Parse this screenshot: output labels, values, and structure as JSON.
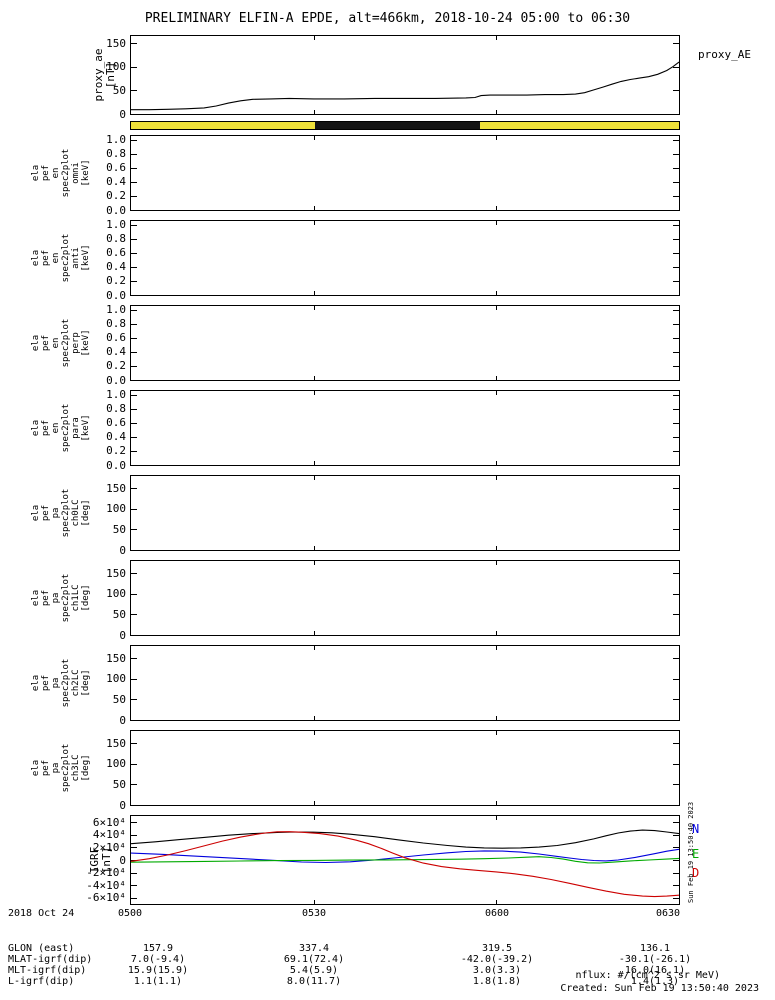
{
  "title": "PRELIMINARY ELFIN-A EPDE, alt=466km, 2018-10-24 05:00 to 06:30",
  "side_timestamp": "Sun Feb 19 13:50:40 2023",
  "footer": {
    "rows": [
      {
        "label": "2018 Oct 24",
        "values": [
          "0500",
          "0530",
          "0600",
          "0630"
        ]
      },
      {
        "label": "GLON (east)",
        "values": [
          "157.9",
          "337.4",
          "319.5",
          "136.1"
        ]
      },
      {
        "label": "MLAT-igrf(dip)",
        "values": [
          "7.0(-9.4)",
          "69.1(72.4)",
          "-42.0(-39.2)",
          "-30.1(-26.1)"
        ]
      },
      {
        "label": "MLT-igrf(dip)",
        "values": [
          "15.9(15.9)",
          "5.4(5.9)",
          "3.0(3.3)",
          "16.0(16.1)"
        ]
      },
      {
        "label": "L-igrf(dip)",
        "values": [
          "1.1(1.1)",
          "8.0(11.7)",
          "1.8(1.8)",
          "1.4(1.3)"
        ]
      }
    ],
    "nflux_units": "nflux: #/(cm^2 s sr MeV)",
    "created": "Created: Sun Feb 19 13:50:40 2023"
  },
  "panels": {
    "proxy": {
      "ylim": [
        0,
        165
      ],
      "yticks": [
        {
          "v": 0,
          "label": "0"
        },
        {
          "v": 50,
          "label": "50"
        },
        {
          "v": 100,
          "label": "100"
        },
        {
          "v": 150,
          "label": "150"
        }
      ],
      "ylabel_lines": [
        "proxy_ae",
        "[nT]"
      ]
    },
    "omni": {
      "ylim": [
        0,
        1.05
      ],
      "yticks": [
        {
          "v": 0,
          "label": "0.0"
        },
        {
          "v": 0.2,
          "label": "0.2"
        },
        {
          "v": 0.4,
          "label": "0.4"
        },
        {
          "v": 0.6,
          "label": "0.6"
        },
        {
          "v": 0.8,
          "label": "0.8"
        },
        {
          "v": 1,
          "label": "1.0"
        }
      ],
      "ylabel_lines": [
        "ela",
        "pef",
        "en",
        "spec2plot",
        "omni",
        "[keV]"
      ]
    },
    "anti": {
      "ylim": [
        0,
        1.05
      ],
      "yticks": [
        {
          "v": 0,
          "label": "0.0"
        },
        {
          "v": 0.2,
          "label": "0.2"
        },
        {
          "v": 0.4,
          "label": "0.4"
        },
        {
          "v": 0.6,
          "label": "0.6"
        },
        {
          "v": 0.8,
          "label": "0.8"
        },
        {
          "v": 1,
          "label": "1.0"
        }
      ],
      "ylabel_lines": [
        "ela",
        "pef",
        "en",
        "spec2plot",
        "anti",
        "[keV]"
      ]
    },
    "perp": {
      "ylim": [
        0,
        1.05
      ],
      "yticks": [
        {
          "v": 0,
          "label": "0.0"
        },
        {
          "v": 0.2,
          "label": "0.2"
        },
        {
          "v": 0.4,
          "label": "0.4"
        },
        {
          "v": 0.6,
          "label": "0.6"
        },
        {
          "v": 0.8,
          "label": "0.8"
        },
        {
          "v": 1,
          "label": "1.0"
        }
      ],
      "ylabel_lines": [
        "ela",
        "pef",
        "en",
        "spec2plot",
        "perp",
        "[keV]"
      ]
    },
    "para": {
      "ylim": [
        0,
        1.05
      ],
      "yticks": [
        {
          "v": 0,
          "label": "0.0"
        },
        {
          "v": 0.2,
          "label": "0.2"
        },
        {
          "v": 0.4,
          "label": "0.4"
        },
        {
          "v": 0.6,
          "label": "0.6"
        },
        {
          "v": 0.8,
          "label": "0.8"
        },
        {
          "v": 1,
          "label": "1.0"
        }
      ],
      "ylabel_lines": [
        "ela",
        "pef",
        "en",
        "spec2plot",
        "para",
        "[keV]"
      ]
    },
    "ch0": {
      "ylim": [
        0,
        180
      ],
      "yticks": [
        {
          "v": 0,
          "label": "0"
        },
        {
          "v": 50,
          "label": "50"
        },
        {
          "v": 100,
          "label": "100"
        },
        {
          "v": 150,
          "label": "150"
        }
      ],
      "ylabel_lines": [
        "ela",
        "pef",
        "pa",
        "spec2plot",
        "ch0LC",
        "[deg]"
      ]
    },
    "ch1": {
      "ylim": [
        0,
        180
      ],
      "yticks": [
        {
          "v": 0,
          "label": "0"
        },
        {
          "v": 50,
          "label": "50"
        },
        {
          "v": 100,
          "label": "100"
        },
        {
          "v": 150,
          "label": "150"
        }
      ],
      "ylabel_lines": [
        "ela",
        "pef",
        "pa",
        "spec2plot",
        "ch1LC",
        "[deg]"
      ]
    },
    "ch2": {
      "ylim": [
        0,
        180
      ],
      "yticks": [
        {
          "v": 0,
          "label": "0"
        },
        {
          "v": 50,
          "label": "50"
        },
        {
          "v": 100,
          "label": "100"
        },
        {
          "v": 150,
          "label": "150"
        }
      ],
      "ylabel_lines": [
        "ela",
        "pef",
        "pa",
        "spec2plot",
        "ch2LC",
        "[deg]"
      ]
    },
    "ch3": {
      "ylim": [
        0,
        180
      ],
      "yticks": [
        {
          "v": 0,
          "label": "0"
        },
        {
          "v": 50,
          "label": "50"
        },
        {
          "v": 100,
          "label": "100"
        },
        {
          "v": 150,
          "label": "150"
        }
      ],
      "ylabel_lines": [
        "ela",
        "pef",
        "pa",
        "spec2plot",
        "ch3LC",
        "[deg]"
      ]
    },
    "igrf": {
      "ylim": [
        -70000,
        70000
      ],
      "yticks": [
        {
          "v": 60000,
          "label": "6×10⁴"
        },
        {
          "v": 40000,
          "label": "4×10⁴"
        },
        {
          "v": 20000,
          "label": "2×10⁴"
        },
        {
          "v": 0,
          "label": "0"
        },
        {
          "v": -20000,
          "label": "-2×10⁴"
        },
        {
          "v": -40000,
          "label": "-4×10⁴"
        },
        {
          "v": -60000,
          "label": "-6×10⁴"
        }
      ],
      "ylabel_lines": [
        "IGRF",
        "[nT]"
      ]
    }
  },
  "chart_data": [
    {
      "name": "proxy_ae",
      "type": "line",
      "title": "proxy_AE",
      "ylabel": "proxy_ae [nT]",
      "xlim": [
        0,
        90
      ],
      "ylim": [
        0,
        165
      ],
      "x_unit": "minutes after 2018-10-24/05:00",
      "xticks": {
        "minutes": [
          0,
          30,
          60,
          90
        ],
        "labels": [
          "0500",
          "0530",
          "0600",
          "0630"
        ]
      },
      "grid": false,
      "series": [
        {
          "name": "proxy_AE",
          "color": "#000000",
          "x": [
            0,
            3,
            6,
            9,
            12,
            14,
            16,
            18,
            20,
            23,
            26,
            30,
            35,
            40,
            45,
            50,
            55,
            56.5,
            57.5,
            59,
            62,
            65,
            68,
            71,
            73,
            74.5,
            76,
            77.5,
            79,
            80.5,
            82,
            83.5,
            85,
            86.5,
            88,
            89,
            90
          ],
          "y": [
            9,
            9,
            10,
            11,
            13,
            17,
            23,
            28,
            31,
            32,
            33,
            32,
            32,
            33,
            33,
            33,
            34,
            35,
            39,
            40,
            40,
            40,
            41,
            41,
            42,
            45,
            51,
            57,
            63,
            69,
            73,
            76,
            79,
            84,
            92,
            100,
            110
          ]
        }
      ]
    },
    {
      "name": "spin_bar",
      "type": "bar",
      "xlim": [
        0,
        90
      ],
      "segments": [
        {
          "start": 0,
          "end": 30.3,
          "color": "#efe13a"
        },
        {
          "start": 30.3,
          "end": 57.3,
          "color": "#141414"
        },
        {
          "start": 57.3,
          "end": 90,
          "color": "#efe13a"
        }
      ]
    },
    {
      "name": "igrf",
      "type": "line",
      "ylabel": "IGRF [nT]",
      "xlim": [
        0,
        90
      ],
      "ylim": [
        -70000,
        70000
      ],
      "xticks": {
        "minutes": [
          0,
          30,
          60,
          90
        ],
        "labels": [
          "0500",
          "0530",
          "0600",
          "0630"
        ]
      },
      "grid": false,
      "legend": [
        {
          "label": "N",
          "color": "#0000dd"
        },
        {
          "label": "E",
          "color": "#00aa00"
        },
        {
          "label": "D",
          "color": "#cc0000"
        }
      ],
      "series": [
        {
          "name": "B",
          "color": "#000000",
          "x": [
            0,
            4,
            8,
            12,
            16,
            20,
            24,
            27,
            30,
            33,
            36,
            40,
            44,
            48,
            52,
            55,
            58,
            61,
            64,
            67,
            70,
            73,
            76,
            78,
            80,
            82,
            84,
            86,
            88,
            90
          ],
          "y": [
            26000,
            29000,
            32500,
            36000,
            39500,
            42000,
            43800,
            44500,
            44300,
            43200,
            41000,
            37000,
            32000,
            27000,
            23000,
            20500,
            19200,
            18800,
            19200,
            20500,
            23000,
            27500,
            33500,
            38500,
            43000,
            46000,
            47500,
            46800,
            44500,
            42000
          ]
        },
        {
          "name": "N",
          "color": "#0000dd",
          "x": [
            0,
            5,
            10,
            15,
            20,
            24,
            28,
            32,
            36,
            40,
            44,
            48,
            52,
            55,
            58,
            61,
            64,
            67,
            70,
            72,
            74,
            76,
            78,
            80,
            83,
            86,
            88,
            90
          ],
          "y": [
            11000,
            9000,
            6500,
            3800,
            1200,
            -1000,
            -3200,
            -4000,
            -2800,
            0,
            4000,
            8000,
            11500,
            13500,
            14500,
            14200,
            12500,
            9500,
            5800,
            3200,
            800,
            -800,
            -1500,
            0,
            4500,
            10000,
            14000,
            17000
          ]
        },
        {
          "name": "E",
          "color": "#00aa00",
          "x": [
            0,
            6,
            12,
            18,
            24,
            30,
            36,
            42,
            48,
            54,
            58,
            62,
            65,
            67,
            69,
            71,
            73,
            75,
            77,
            79,
            82,
            85,
            88,
            90
          ],
          "y": [
            -3500,
            -2800,
            -2200,
            -1600,
            -1000,
            -600,
            -200,
            200,
            600,
            1200,
            2000,
            3200,
            4500,
            5200,
            4000,
            1500,
            -2000,
            -4500,
            -4800,
            -3500,
            -1500,
            0,
            1500,
            2500
          ]
        },
        {
          "name": "D",
          "color": "#cc0000",
          "x": [
            0,
            3,
            6,
            9,
            12,
            15,
            18,
            20,
            22,
            24,
            26,
            28,
            31,
            34,
            37,
            39,
            41,
            43,
            45,
            48,
            51,
            54,
            57,
            60,
            63,
            66,
            69,
            72,
            75,
            78,
            81,
            84,
            86,
            88,
            90
          ],
          "y": [
            -2000,
            2000,
            8000,
            15000,
            22500,
            30000,
            36500,
            40000,
            43000,
            44800,
            45000,
            44200,
            42000,
            38000,
            31500,
            26000,
            19000,
            11000,
            3500,
            -5000,
            -10500,
            -14000,
            -16500,
            -19000,
            -22000,
            -26000,
            -31000,
            -37000,
            -43500,
            -49500,
            -54500,
            -57500,
            -58200,
            -57500,
            -56000
          ]
        }
      ]
    }
  ]
}
